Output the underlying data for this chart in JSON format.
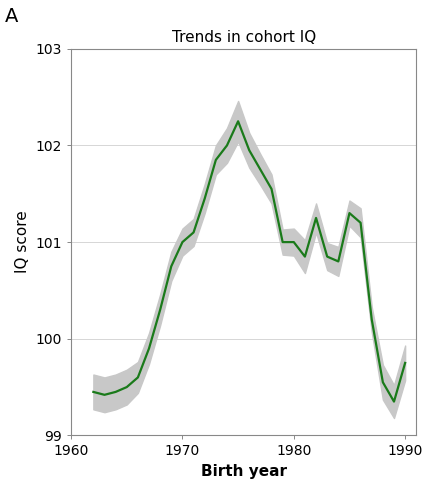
{
  "title": "Trends in cohort IQ",
  "xlabel": "Birth year",
  "ylabel": "IQ score",
  "panel_label": "A",
  "xlim": [
    1960,
    1991
  ],
  "ylim": [
    99,
    103
  ],
  "yticks": [
    99,
    100,
    101,
    102,
    103
  ],
  "xticks": [
    1960,
    1970,
    1980,
    1990
  ],
  "line_color": "#1a7a1a",
  "ci_color": "#c8c8c8",
  "background_color": "#ffffff",
  "years": [
    1962,
    1963,
    1964,
    1965,
    1966,
    1967,
    1968,
    1969,
    1970,
    1971,
    1972,
    1973,
    1974,
    1975,
    1976,
    1977,
    1978,
    1979,
    1980,
    1981,
    1982,
    1983,
    1984,
    1985,
    1986,
    1987,
    1988,
    1989,
    1990
  ],
  "iq": [
    99.45,
    99.42,
    99.45,
    99.5,
    99.6,
    99.9,
    100.3,
    100.75,
    101.0,
    101.1,
    101.45,
    101.85,
    102.0,
    102.25,
    101.95,
    101.75,
    101.55,
    101.0,
    101.0,
    100.85,
    101.25,
    100.85,
    100.8,
    101.3,
    101.2,
    100.2,
    99.55,
    99.35,
    99.75
  ],
  "ci_upper": [
    99.63,
    99.6,
    99.63,
    99.68,
    99.76,
    100.06,
    100.46,
    100.9,
    101.14,
    101.24,
    101.6,
    102.0,
    102.18,
    102.46,
    102.13,
    101.91,
    101.7,
    101.13,
    101.14,
    101.02,
    101.4,
    100.99,
    100.95,
    101.43,
    101.35,
    100.33,
    99.73,
    99.52,
    99.93
  ],
  "ci_lower": [
    99.27,
    99.24,
    99.27,
    99.32,
    99.44,
    99.74,
    100.14,
    100.6,
    100.86,
    100.96,
    101.3,
    101.7,
    101.82,
    102.04,
    101.77,
    101.59,
    101.4,
    100.87,
    100.86,
    100.68,
    101.1,
    100.71,
    100.65,
    101.17,
    101.05,
    100.07,
    99.37,
    99.18,
    99.57
  ],
  "title_fontsize": 11,
  "label_fontsize": 11,
  "tick_fontsize": 10,
  "panel_fontsize": 14
}
